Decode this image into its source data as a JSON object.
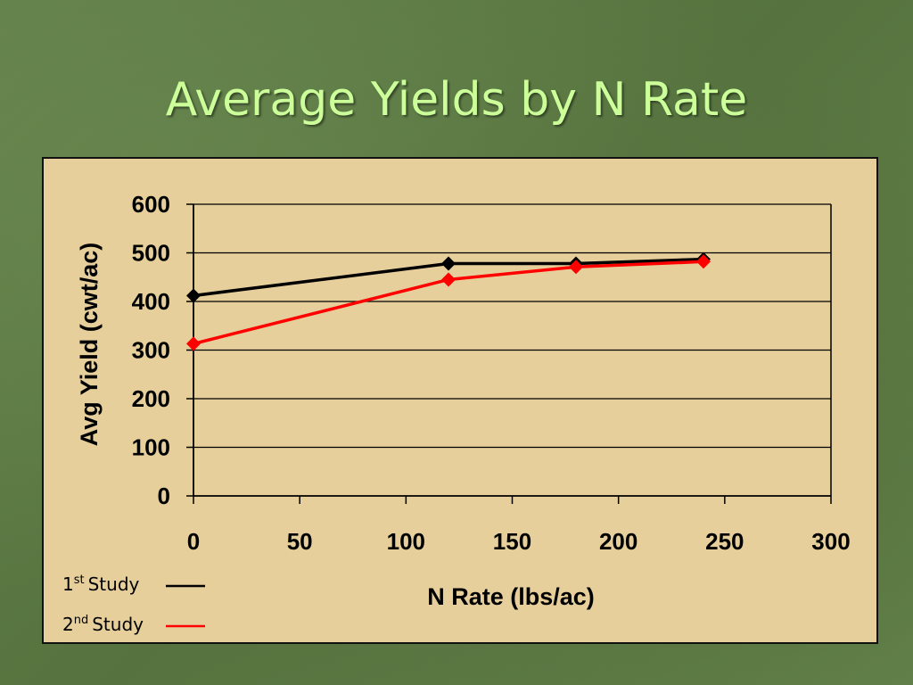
{
  "slide": {
    "title": "Average Yields by N Rate",
    "background_color": "#5f7a45",
    "title_color": "#ccff99",
    "chart_background": "#e6cf9b"
  },
  "chart_data": {
    "type": "line",
    "title": "",
    "xlabel": "N Rate (lbs/ac)",
    "ylabel": "Avg Yield (cwt/ac)",
    "xlim": [
      0,
      300
    ],
    "ylim": [
      0,
      600
    ],
    "x_ticks": [
      0,
      50,
      100,
      150,
      200,
      250,
      300
    ],
    "y_ticks": [
      0,
      100,
      200,
      300,
      400,
      500,
      600
    ],
    "grid": "horizontal",
    "legend_position": "bottom-left",
    "series": [
      {
        "name": "1st Study",
        "legend_base": "1",
        "legend_sup": "st",
        "legend_suffix": "Study",
        "color": "#000000",
        "marker": "diamond",
        "x": [
          0,
          120,
          180,
          240
        ],
        "y": [
          412,
          478,
          478,
          487
        ]
      },
      {
        "name": "2nd Study",
        "legend_base": "2",
        "legend_sup": "nd",
        "legend_suffix": "Study",
        "color": "#ff0000",
        "marker": "diamond",
        "x": [
          0,
          120,
          180,
          240
        ],
        "y": [
          313,
          445,
          471,
          482
        ]
      }
    ]
  }
}
